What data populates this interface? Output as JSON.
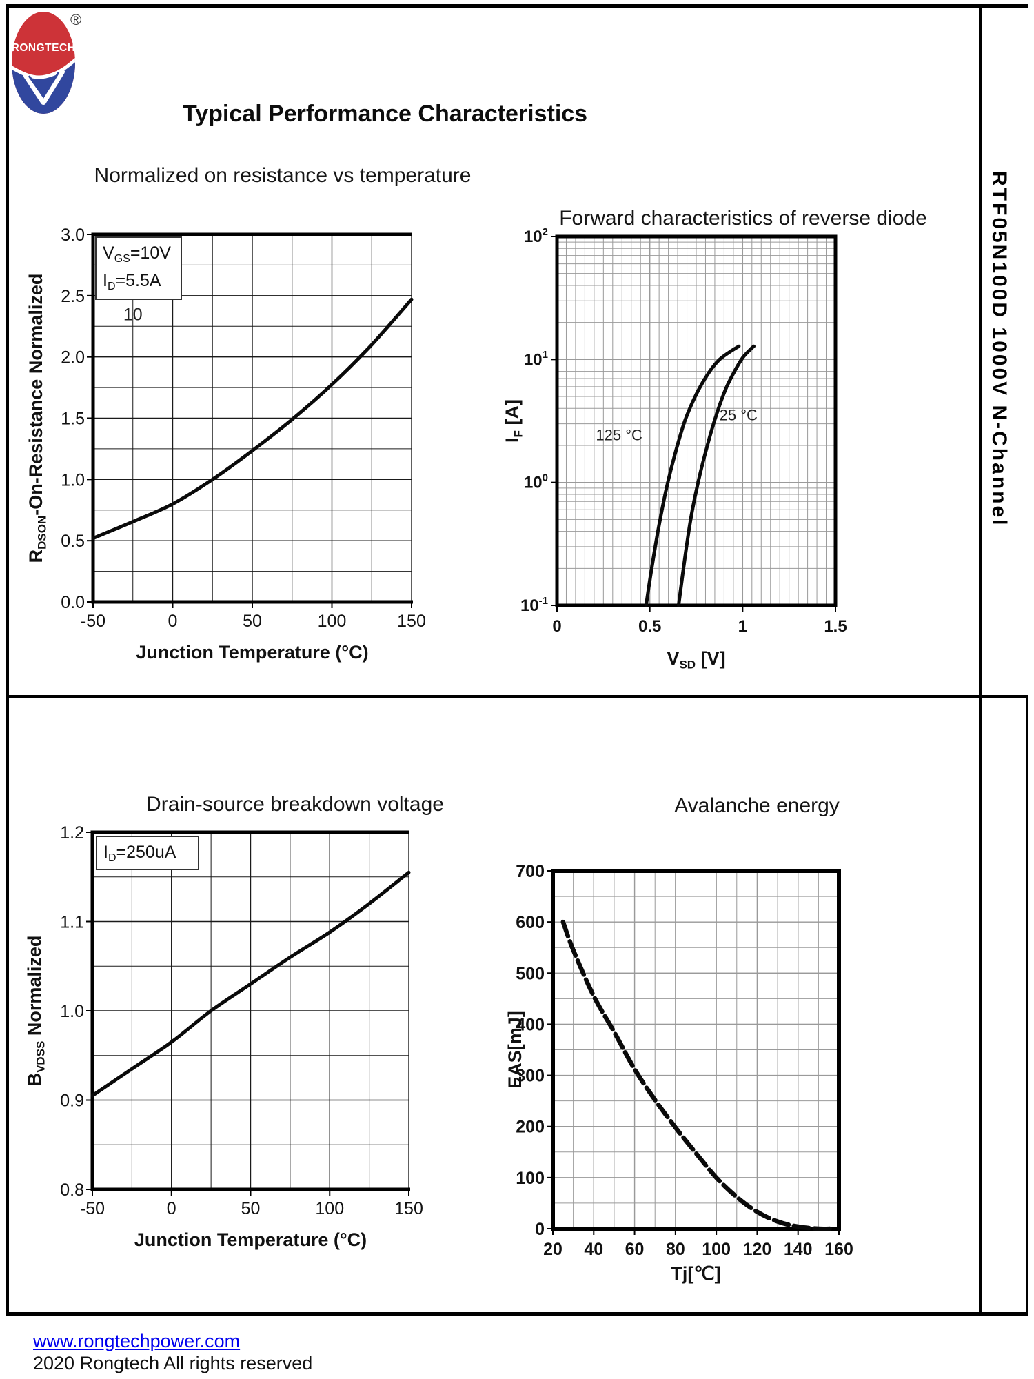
{
  "page": {
    "header": "Typical Performance Characteristics",
    "side_label": "RTF05N100D 1000V N-Channel",
    "logo": {
      "brand": "RONGTECH",
      "registered": "®",
      "color_red": "#cd3338",
      "color_blue": "#31479e"
    },
    "footer": {
      "link": "www.rongtechpower.com",
      "copyright": "2020 Rongtech All rights reserved",
      "link_color": "#0000ee"
    }
  },
  "chart_data": [
    {
      "id": "rdson",
      "type": "line",
      "title": "Normalized on resistance vs temperature",
      "xlabel": "Junction Temperature (°C)",
      "ylabel": "R_{DSON}-On-Resistance Normalized",
      "xlim": [
        -50,
        150
      ],
      "ylim": [
        0,
        3
      ],
      "xticks": [
        -50,
        0,
        50,
        100,
        150
      ],
      "ytick_labels": [
        "0.0",
        "0.5",
        "1.0",
        "1.5",
        "2.0",
        "2.5",
        "3.0"
      ],
      "x_minor": 25,
      "y_minor": 0.25,
      "grid": "on",
      "grid_color": "#1a1a1a",
      "legend_lines": [
        "V_{GS}=10V",
        "I_{D}=5.5A"
      ],
      "annotations": [
        {
          "text": "10",
          "x": -25,
          "y": 2.3,
          "anchor": "middle"
        }
      ],
      "series": [
        {
          "name": "RDSON normalized",
          "points": [
            [
              -50,
              0.52
            ],
            [
              -25,
              0.655
            ],
            [
              0,
              0.8
            ],
            [
              25,
              1.0
            ],
            [
              50,
              1.235
            ],
            [
              75,
              1.49
            ],
            [
              100,
              1.775
            ],
            [
              125,
              2.1
            ],
            [
              150,
              2.47
            ]
          ]
        }
      ]
    },
    {
      "id": "diode",
      "type": "line",
      "title": "Forward characteristics of reverse diode",
      "xlabel": "V_{SD} [V]",
      "ylabel": "I_{F} [A]",
      "xlim": [
        0,
        1.5
      ],
      "ylim": [
        0.1,
        100
      ],
      "ylog": true,
      "xticks": [
        0,
        0.5,
        1,
        1.5
      ],
      "xtick_labels": [
        "0",
        "0.5",
        "1",
        "1.5"
      ],
      "y_exponents": [
        2,
        1,
        0,
        -1
      ],
      "x_minor": 0.05,
      "grid": "on",
      "grid_color": "#9a9a9a",
      "annotations": [
        {
          "text": "125 °C",
          "x": 0.46,
          "y": 2.2,
          "anchor": "end"
        },
        {
          "text": "25 °C",
          "x": 0.875,
          "y": 3.2,
          "anchor": "start"
        }
      ],
      "series": [
        {
          "name": "125 °C",
          "points": [
            [
              0.48,
              0.1
            ],
            [
              0.51,
              0.2
            ],
            [
              0.55,
              0.45
            ],
            [
              0.59,
              0.9
            ],
            [
              0.64,
              1.8
            ],
            [
              0.69,
              3.2
            ],
            [
              0.75,
              5.2
            ],
            [
              0.81,
              7.5
            ],
            [
              0.87,
              9.8
            ],
            [
              0.93,
              11.5
            ],
            [
              0.98,
              12.8
            ]
          ]
        },
        {
          "name": "25 °C",
          "points": [
            [
              0.655,
              0.1
            ],
            [
              0.685,
              0.22
            ],
            [
              0.72,
              0.5
            ],
            [
              0.76,
              1.0
            ],
            [
              0.81,
              2.0
            ],
            [
              0.86,
              3.6
            ],
            [
              0.91,
              5.8
            ],
            [
              0.96,
              8.2
            ],
            [
              1.0,
              10.3
            ],
            [
              1.04,
              12.0
            ],
            [
              1.06,
              12.8
            ]
          ]
        }
      ]
    },
    {
      "id": "bvdss",
      "type": "line",
      "title": "Drain-source breakdown voltage",
      "xlabel": "Junction Temperature (°C)",
      "ylabel": "B_{VDSS} Normalized",
      "xlim": [
        -50,
        150
      ],
      "ylim": [
        0.8,
        1.2
      ],
      "xticks": [
        -50,
        0,
        50,
        100,
        150
      ],
      "ytick_labels": [
        "0.8",
        "0.9",
        "1.0",
        "1.1",
        "1.2"
      ],
      "x_minor": 25,
      "y_minor": 0.05,
      "grid": "on",
      "grid_color": "#1a1a1a",
      "legend_lines": [
        "I_{D}=250uA"
      ],
      "series": [
        {
          "name": "BVDSS normalized",
          "points": [
            [
              -50,
              0.905
            ],
            [
              -25,
              0.935
            ],
            [
              0,
              0.965
            ],
            [
              25,
              1.0
            ],
            [
              50,
              1.03
            ],
            [
              75,
              1.06
            ],
            [
              100,
              1.088
            ],
            [
              125,
              1.12
            ],
            [
              150,
              1.155
            ]
          ]
        }
      ]
    },
    {
      "id": "eas",
      "type": "line",
      "title": "Avalanche energy",
      "xlabel": "Tj[℃]",
      "ylabel": "EAS[mJ]",
      "xlim": [
        20,
        160
      ],
      "ylim": [
        0,
        700
      ],
      "xticks": [
        20,
        40,
        60,
        80,
        100,
        120,
        140,
        160
      ],
      "ytick_labels": [
        "0",
        "100",
        "200",
        "300",
        "400",
        "500",
        "600",
        "700"
      ],
      "x_minor": 10,
      "y_minor": 50,
      "grid": "on",
      "grid_color": "#9a9a9a",
      "series": [
        {
          "name": "EAS",
          "dash": "22 8",
          "points": [
            [
              25,
              600
            ],
            [
              30,
              545
            ],
            [
              40,
              455
            ],
            [
              50,
              385
            ],
            [
              60,
              312
            ],
            [
              70,
              252
            ],
            [
              80,
              198
            ],
            [
              90,
              148
            ],
            [
              100,
              100
            ],
            [
              110,
              62
            ],
            [
              120,
              33
            ],
            [
              130,
              14
            ],
            [
              140,
              4
            ],
            [
              150,
              0
            ],
            [
              156,
              0
            ]
          ]
        }
      ]
    }
  ]
}
